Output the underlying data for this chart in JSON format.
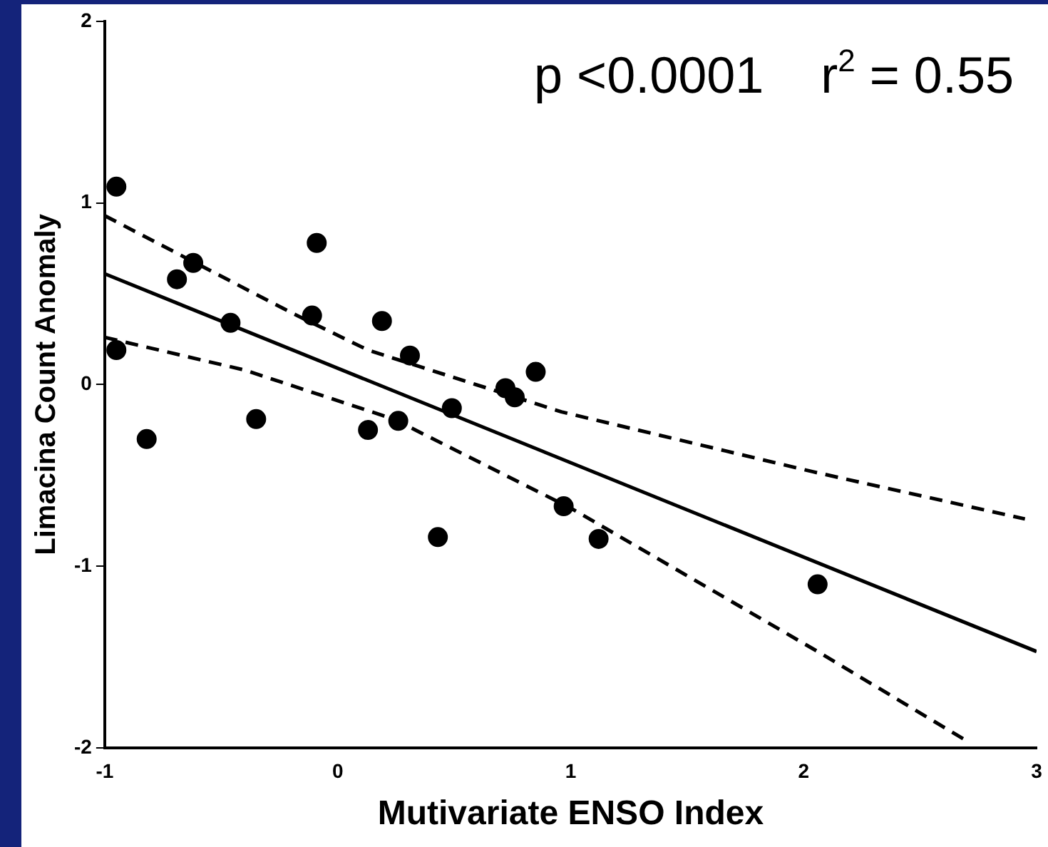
{
  "chart_data": {
    "type": "scatter",
    "xlabel": "Mutivariate ENSO Index",
    "ylabel": "Limacina Count Anomaly",
    "xlim": [
      -1,
      3
    ],
    "ylim": [
      -2,
      2
    ],
    "xticks": [
      -1,
      0,
      1,
      2,
      3
    ],
    "yticks": [
      -2,
      -1,
      0,
      1,
      2
    ],
    "grid": false,
    "legend": false,
    "annotations": [
      "p <0.0001    r$^{2}$ = 0.55"
    ],
    "series": [
      {
        "marker": "circle",
        "color": "#000000",
        "x": [
          -0.95,
          -0.95,
          -0.82,
          -0.69,
          -0.62,
          -0.46,
          -0.35,
          -0.11,
          -0.09,
          0.19,
          0.13,
          0.26,
          0.31,
          0.43,
          0.49,
          0.72,
          0.76,
          0.85,
          0.97,
          1.12,
          2.06
        ],
        "values": [
          1.09,
          0.19,
          -0.3,
          0.58,
          0.67,
          0.34,
          -0.19,
          0.38,
          0.78,
          0.35,
          -0.25,
          -0.2,
          0.16,
          -0.84,
          -0.13,
          -0.02,
          -0.07,
          0.07,
          -0.67,
          -0.85,
          -1.1
        ]
      },
      {
        "type": "line",
        "marker": "none",
        "color": "#000000",
        "line_style": "solid",
        "x": [
          -1,
          3
        ],
        "values": [
          0.61,
          -1.47
        ]
      },
      {
        "type": "line",
        "color": "#000000",
        "marker": "none",
        "line_style": "dashed",
        "x": [
          -1,
          -0.19,
          0.13,
          0.96,
          2.04,
          2.95
        ],
        "values": [
          0.93,
          0.39,
          0.19,
          -0.15,
          -0.48,
          -0.74
        ]
      },
      {
        "type": "line",
        "color": "#000000",
        "marker": "none",
        "line_style": "dashed",
        "x": [
          -1,
          -0.4,
          0.24,
          1.0,
          2.06,
          2.71
        ],
        "values": [
          0.26,
          0.08,
          -0.19,
          -0.68,
          -1.47,
          -1.97
        ]
      }
    ]
  }
}
